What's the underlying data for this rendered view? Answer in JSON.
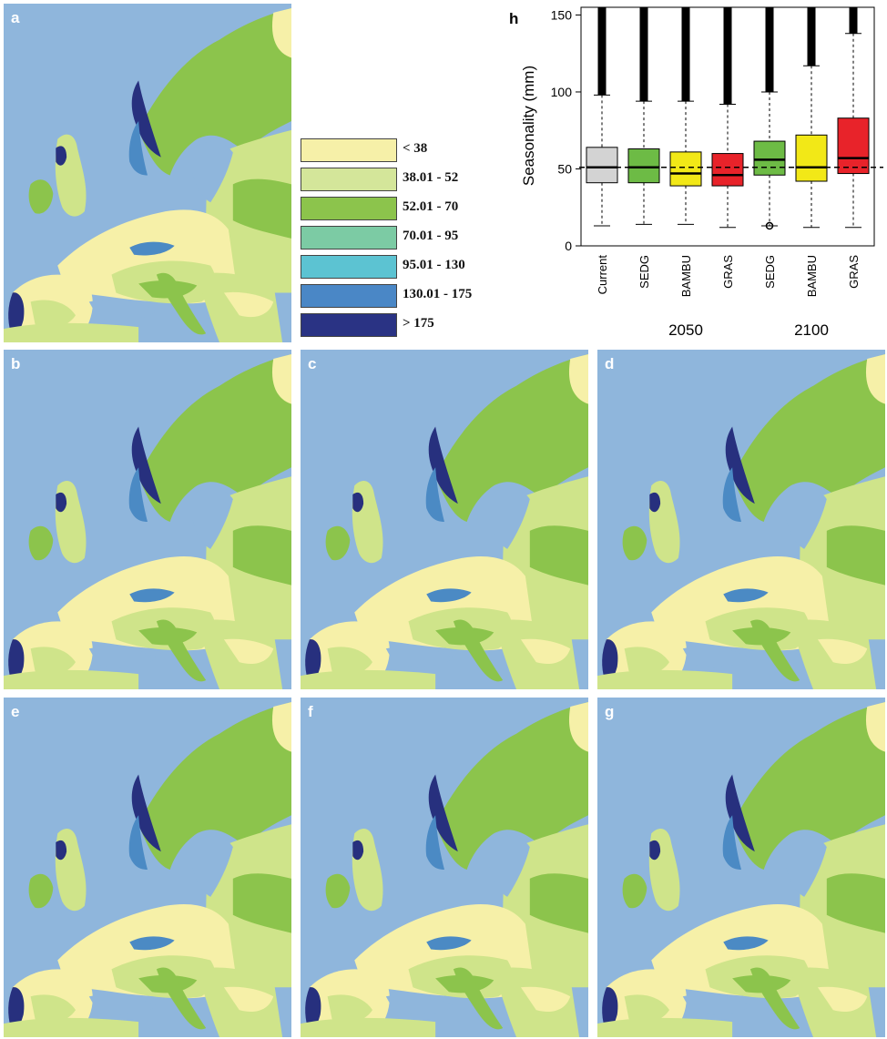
{
  "maps": {
    "panels": [
      {
        "id": "a",
        "label": "a"
      },
      {
        "id": "b",
        "label": "b"
      },
      {
        "id": "c",
        "label": "c"
      },
      {
        "id": "d",
        "label": "d"
      },
      {
        "id": "e",
        "label": "e"
      },
      {
        "id": "f",
        "label": "f"
      },
      {
        "id": "g",
        "label": "g"
      }
    ],
    "colors": {
      "sea": "#8fb6dc",
      "class_lt38": "#f6f0a8",
      "class_38_52": "#cfe48a",
      "class_52_70": "#8cc44c",
      "class_70_95": "#6cc59c",
      "class_95_130": "#5bbfd0",
      "class_130_175": "#4b8ac4",
      "class_gt175": "#27307e"
    }
  },
  "legend": {
    "items": [
      {
        "label": "< 38",
        "color": "#f6f0a8"
      },
      {
        "label": "38.01 - 52",
        "color": "#d4e69a"
      },
      {
        "label": "52.01 - 70",
        "color": "#8cc44c"
      },
      {
        "label": "70.01 - 95",
        "color": "#7ccba4"
      },
      {
        "label": "95.01 - 130",
        "color": "#5cc3d2"
      },
      {
        "label": "130.01 - 175",
        "color": "#4a87c6"
      },
      {
        "label": "> 175",
        "color": "#2a3384"
      }
    ]
  },
  "chart_data": {
    "type": "box",
    "panel_label": "h",
    "ylabel": "Seasonality (mm)",
    "ylim": [
      0,
      155
    ],
    "yticks": [
      0,
      50,
      100,
      150
    ],
    "reference_line": 51,
    "categories": [
      "Current",
      "SEDG",
      "BAMBU",
      "GRAS",
      "SEDG",
      "BAMBU",
      "GRAS"
    ],
    "groups": [
      {
        "label": "2050",
        "categories": [
          1,
          2,
          3
        ]
      },
      {
        "label": "2100",
        "categories": [
          4,
          5,
          6
        ]
      }
    ],
    "boxes": [
      {
        "name": "Current",
        "color": "#d3d3d3",
        "whisker_low": 13,
        "q1": 41,
        "median": 51,
        "q3": 64,
        "whisker_high": 98,
        "outliers_from": 98,
        "outliers_to": 155
      },
      {
        "name": "SEDG",
        "color": "#6dbb45",
        "whisker_low": 14,
        "q1": 41,
        "median": 51,
        "q3": 63,
        "whisker_high": 94,
        "outliers_from": 94,
        "outliers_to": 155
      },
      {
        "name": "BAMBU",
        "color": "#f2e817",
        "whisker_low": 14,
        "q1": 39,
        "median": 47,
        "q3": 61,
        "whisker_high": 94,
        "outliers_from": 94,
        "outliers_to": 155
      },
      {
        "name": "GRAS",
        "color": "#e8232a",
        "whisker_low": 12,
        "q1": 39,
        "median": 46,
        "q3": 60,
        "whisker_high": 92,
        "outliers_from": 92,
        "outliers_to": 155
      },
      {
        "name": "SEDG",
        "color": "#6dbb45",
        "whisker_low": 13,
        "q1": 46,
        "median": 56,
        "q3": 68,
        "whisker_high": 100,
        "outliers_from": 100,
        "outliers_to": 155
      },
      {
        "name": "BAMBU",
        "color": "#f2e817",
        "whisker_low": 12,
        "q1": 42,
        "median": 51,
        "q3": 72,
        "whisker_high": 117,
        "outliers_from": 117,
        "outliers_to": 155
      },
      {
        "name": "GRAS",
        "color": "#e8232a",
        "whisker_low": 12,
        "q1": 47,
        "median": 57,
        "q3": 83,
        "whisker_high": 138,
        "outliers_from": 138,
        "outliers_to": 155
      }
    ]
  }
}
